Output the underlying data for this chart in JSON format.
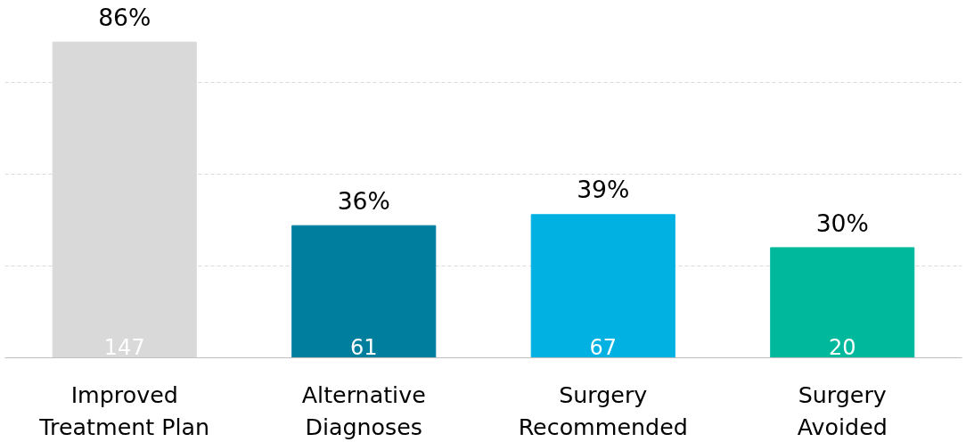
{
  "chart_data": {
    "type": "bar",
    "categories": [
      "Improved\nTreatment Plan",
      "Alternative\nDiagnoses",
      "Surgery\nRecommended",
      "Surgery\nAvoided"
    ],
    "values": [
      86,
      36,
      39,
      30
    ],
    "colors": [
      "#d9d9d9",
      "#007e9e",
      "#00b1e2",
      "#00b89c"
    ],
    "value_labels": [
      "86%",
      "36%",
      "39%",
      "30%"
    ],
    "annotations": [
      "147",
      "61",
      "67",
      "20"
    ],
    "yticks": [
      {
        "value": 0,
        "label": null
      },
      {
        "value": 25,
        "label": null
      },
      {
        "value": 50,
        "label": null
      },
      {
        "value": 75,
        "label": null
      }
    ],
    "grid": "y",
    "tick_labels": "x"
  }
}
